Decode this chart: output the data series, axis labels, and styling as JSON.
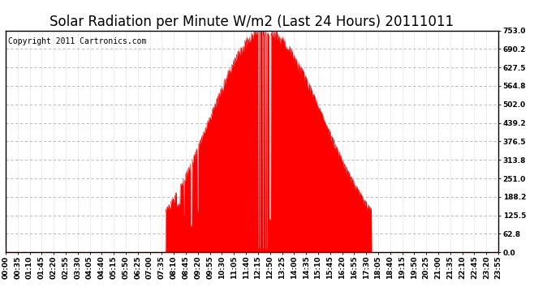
{
  "title": "Solar Radiation per Minute W/m2 (Last 24 Hours) 20111011",
  "copyright": "Copyright 2011 Cartronics.com",
  "background_color": "#ffffff",
  "plot_bg_color": "#ffffff",
  "fill_color": "#ff0000",
  "line_color": "#ff0000",
  "grid_color": "#b0b0b0",
  "dashed_line_color": "#ff0000",
  "ytick_labels": [
    "0.0",
    "62.8",
    "125.5",
    "188.2",
    "251.0",
    "313.8",
    "376.5",
    "439.2",
    "502.0",
    "564.8",
    "627.5",
    "690.2",
    "753.0"
  ],
  "ytick_values": [
    0.0,
    62.8,
    125.5,
    188.2,
    251.0,
    313.8,
    376.5,
    439.2,
    502.0,
    564.8,
    627.5,
    690.2,
    753.0
  ],
  "ymax": 753.0,
  "ymin": 0.0,
  "xtick_labels": [
    "00:00",
    "00:35",
    "01:10",
    "01:45",
    "02:20",
    "02:55",
    "03:30",
    "04:05",
    "04:40",
    "05:15",
    "05:50",
    "06:25",
    "07:00",
    "07:35",
    "08:10",
    "08:45",
    "09:20",
    "09:55",
    "10:30",
    "11:05",
    "11:40",
    "12:15",
    "12:50",
    "13:25",
    "14:00",
    "14:35",
    "15:10",
    "15:45",
    "16:20",
    "16:55",
    "17:30",
    "18:05",
    "18:40",
    "19:15",
    "19:50",
    "20:25",
    "21:00",
    "21:35",
    "22:10",
    "22:45",
    "23:20",
    "23:55"
  ],
  "title_fontsize": 12,
  "copyright_fontsize": 7,
  "tick_fontsize": 6.5
}
